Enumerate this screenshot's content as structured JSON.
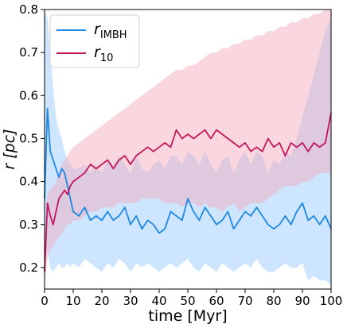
{
  "chart_data": {
    "type": "line",
    "xlabel": "time [Myr]",
    "ylabel": "r [pc]",
    "xlim": [
      0,
      100
    ],
    "ylim": [
      0.15,
      0.8
    ],
    "xticks": [
      "0",
      "10",
      "20",
      "30",
      "40",
      "50",
      "60",
      "70",
      "80",
      "90",
      "100"
    ],
    "yticks": [
      "0.2",
      "0.3",
      "0.4",
      "0.5",
      "0.6",
      "0.7",
      "0.8"
    ],
    "grid": false,
    "legend_position": "top-left",
    "series": [
      {
        "name": "r_IMBH",
        "legend_main": "r",
        "legend_sub": "IMBH",
        "color": "#1e88e5",
        "band_color": "#90c6ff",
        "x": [
          0,
          1,
          2,
          3,
          4,
          5,
          6,
          7,
          8,
          9,
          10,
          12,
          14,
          16,
          18,
          20,
          22,
          24,
          26,
          28,
          30,
          32,
          34,
          36,
          38,
          40,
          42,
          44,
          46,
          48,
          50,
          52,
          54,
          56,
          58,
          60,
          62,
          64,
          66,
          68,
          70,
          72,
          74,
          76,
          78,
          80,
          82,
          84,
          86,
          88,
          90,
          92,
          94,
          96,
          98,
          100
        ],
        "values": [
          0.36,
          0.57,
          0.47,
          0.45,
          0.43,
          0.41,
          0.43,
          0.42,
          0.39,
          0.36,
          0.33,
          0.32,
          0.34,
          0.31,
          0.32,
          0.31,
          0.33,
          0.31,
          0.32,
          0.34,
          0.3,
          0.32,
          0.29,
          0.31,
          0.3,
          0.28,
          0.29,
          0.33,
          0.32,
          0.31,
          0.36,
          0.33,
          0.31,
          0.34,
          0.32,
          0.3,
          0.31,
          0.33,
          0.29,
          0.31,
          0.33,
          0.32,
          0.34,
          0.32,
          0.3,
          0.29,
          0.3,
          0.32,
          0.3,
          0.33,
          0.35,
          0.31,
          0.32,
          0.3,
          0.32,
          0.29
        ],
        "band_upper": [
          0.8,
          0.78,
          0.7,
          0.62,
          0.55,
          0.52,
          0.5,
          0.47,
          0.45,
          0.44,
          0.43,
          0.43,
          0.44,
          0.42,
          0.44,
          0.42,
          0.45,
          0.44,
          0.46,
          0.44,
          0.42,
          0.46,
          0.43,
          0.42,
          0.44,
          0.45,
          0.43,
          0.46,
          0.46,
          0.44,
          0.47,
          0.46,
          0.44,
          0.47,
          0.44,
          0.42,
          0.45,
          0.46,
          0.42,
          0.45,
          0.47,
          0.44,
          0.47,
          0.46,
          0.42,
          0.45,
          0.44,
          0.47,
          0.46,
          0.5,
          0.55,
          0.6,
          0.65,
          0.7,
          0.75,
          0.78
        ],
        "band_lower": [
          0.2,
          0.24,
          0.2,
          0.19,
          0.2,
          0.21,
          0.2,
          0.2,
          0.21,
          0.2,
          0.21,
          0.2,
          0.22,
          0.21,
          0.2,
          0.19,
          0.21,
          0.2,
          0.22,
          0.21,
          0.19,
          0.21,
          0.2,
          0.21,
          0.2,
          0.19,
          0.2,
          0.21,
          0.2,
          0.21,
          0.22,
          0.2,
          0.19,
          0.21,
          0.2,
          0.19,
          0.21,
          0.2,
          0.19,
          0.2,
          0.21,
          0.2,
          0.22,
          0.2,
          0.19,
          0.19,
          0.2,
          0.21,
          0.2,
          0.2,
          0.21,
          0.17,
          0.18,
          0.17,
          0.17,
          0.16
        ]
      },
      {
        "name": "r_10",
        "legend_main": "r",
        "legend_sub": "10",
        "color": "#c2185b",
        "band_color": "#f4a6b6",
        "x": [
          0,
          1,
          2,
          3,
          4,
          5,
          6,
          7,
          8,
          9,
          10,
          12,
          14,
          16,
          18,
          20,
          22,
          24,
          26,
          28,
          30,
          32,
          34,
          36,
          38,
          40,
          42,
          44,
          46,
          48,
          50,
          52,
          54,
          56,
          58,
          60,
          62,
          64,
          66,
          68,
          70,
          72,
          74,
          76,
          78,
          80,
          82,
          84,
          86,
          88,
          90,
          92,
          94,
          96,
          98,
          100
        ],
        "values": [
          0.19,
          0.35,
          0.32,
          0.3,
          0.33,
          0.36,
          0.37,
          0.38,
          0.37,
          0.39,
          0.4,
          0.41,
          0.42,
          0.44,
          0.43,
          0.44,
          0.45,
          0.43,
          0.45,
          0.46,
          0.44,
          0.46,
          0.47,
          0.48,
          0.47,
          0.48,
          0.49,
          0.48,
          0.52,
          0.5,
          0.51,
          0.5,
          0.51,
          0.52,
          0.5,
          0.52,
          0.51,
          0.5,
          0.49,
          0.48,
          0.49,
          0.47,
          0.48,
          0.47,
          0.5,
          0.48,
          0.49,
          0.46,
          0.49,
          0.48,
          0.49,
          0.47,
          0.49,
          0.48,
          0.49,
          0.56
        ],
        "band_upper": [
          0.22,
          0.37,
          0.38,
          0.39,
          0.4,
          0.42,
          0.44,
          0.45,
          0.46,
          0.47,
          0.48,
          0.49,
          0.5,
          0.51,
          0.52,
          0.53,
          0.54,
          0.55,
          0.56,
          0.57,
          0.58,
          0.59,
          0.6,
          0.61,
          0.62,
          0.63,
          0.64,
          0.65,
          0.66,
          0.66,
          0.67,
          0.67,
          0.68,
          0.69,
          0.7,
          0.7,
          0.71,
          0.71,
          0.72,
          0.72,
          0.73,
          0.73,
          0.74,
          0.74,
          0.75,
          0.75,
          0.76,
          0.76,
          0.77,
          0.77,
          0.78,
          0.78,
          0.79,
          0.79,
          0.8,
          0.8
        ],
        "band_lower": [
          0.16,
          0.22,
          0.24,
          0.25,
          0.26,
          0.27,
          0.28,
          0.29,
          0.3,
          0.3,
          0.31,
          0.31,
          0.32,
          0.33,
          0.33,
          0.34,
          0.34,
          0.34,
          0.35,
          0.35,
          0.35,
          0.35,
          0.36,
          0.36,
          0.36,
          0.36,
          0.35,
          0.35,
          0.35,
          0.34,
          0.35,
          0.35,
          0.34,
          0.35,
          0.34,
          0.34,
          0.33,
          0.34,
          0.35,
          0.33,
          0.34,
          0.35,
          0.35,
          0.35,
          0.36,
          0.37,
          0.38,
          0.39,
          0.39,
          0.39,
          0.4,
          0.4,
          0.41,
          0.42,
          0.42,
          0.42
        ]
      }
    ]
  }
}
